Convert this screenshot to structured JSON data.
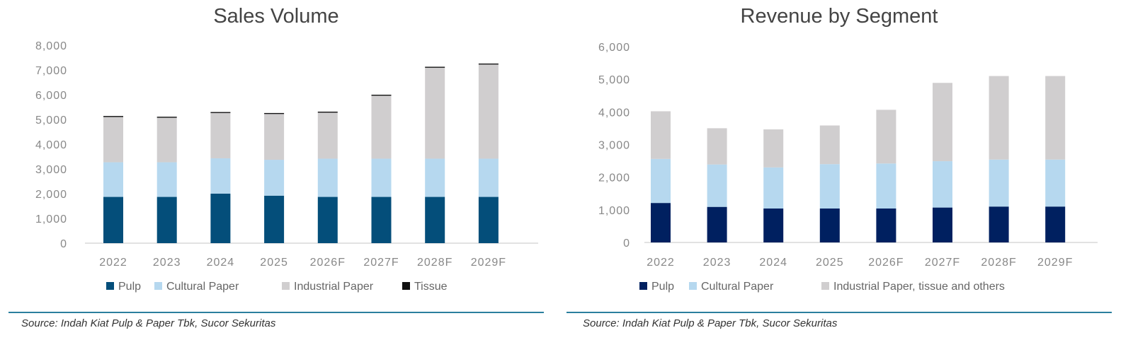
{
  "chart_data": [
    {
      "type": "bar",
      "stacked": true,
      "title": "Sales Volume",
      "xlabel": "",
      "ylabel": "",
      "ylim": [
        0,
        8000
      ],
      "yticks": [
        0,
        1000,
        2000,
        3000,
        4000,
        5000,
        6000,
        7000,
        8000
      ],
      "categories": [
        "2022",
        "2023",
        "2024",
        "2025",
        "2026F",
        "2027F",
        "2028F",
        "2029F"
      ],
      "series": [
        {
          "name": "Pulp",
          "color": "#044e7a",
          "values": [
            1870,
            1870,
            2000,
            1920,
            1870,
            1870,
            1870,
            1870
          ]
        },
        {
          "name": "Cultural Paper",
          "color": "#b6d8ef",
          "values": [
            1400,
            1400,
            1430,
            1450,
            1545,
            1545,
            1545,
            1545
          ]
        },
        {
          "name": "Industrial Paper",
          "color": "#d0cecf",
          "values": [
            1830,
            1800,
            1830,
            1850,
            1860,
            2545,
            3675,
            3805
          ]
        },
        {
          "name": "Tissue",
          "color": "#111111",
          "values": [
            40,
            40,
            40,
            40,
            40,
            40,
            40,
            40
          ]
        }
      ],
      "legend": "bottom"
    },
    {
      "type": "bar",
      "stacked": true,
      "title": "Revenue by Segment",
      "xlabel": "",
      "ylabel": "",
      "ylim": [
        0,
        6000
      ],
      "yticks": [
        0,
        1000,
        2000,
        3000,
        4000,
        5000,
        6000
      ],
      "categories": [
        "2022",
        "2023",
        "2024",
        "2025",
        "2026F",
        "2027F",
        "2028F",
        "2029F"
      ],
      "series": [
        {
          "name": "Pulp",
          "color": "#002060",
          "values": [
            1210,
            1090,
            1040,
            1040,
            1040,
            1070,
            1100,
            1100
          ]
        },
        {
          "name": "Cultural Paper",
          "color": "#b6d8ef",
          "values": [
            1350,
            1300,
            1260,
            1360,
            1380,
            1420,
            1440,
            1440
          ]
        },
        {
          "name": "Industrial Paper, tissue and others",
          "color": "#d0cecf",
          "values": [
            1460,
            1110,
            1165,
            1185,
            1645,
            2400,
            2560,
            2560
          ]
        }
      ],
      "legend": "bottom"
    }
  ],
  "sources": [
    "Source: Indah Kiat Pulp & Paper Tbk, Sucor Sekuritas",
    "Source: Indah Kiat Pulp & Paper Tbk, Sucor Sekuritas"
  ]
}
